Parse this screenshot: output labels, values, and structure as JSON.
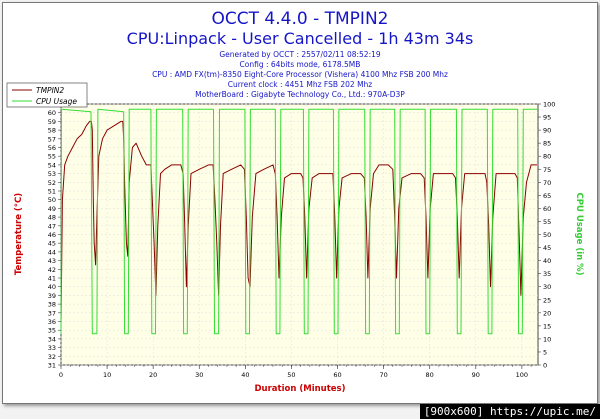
{
  "watermark": "[900x600] https://upic.me/",
  "chart_data": {
    "type": "line",
    "title": "OCCT 4.4.0 - TMPIN2",
    "subtitle": "CPU:Linpack - User Cancelled - 1h 43m 34s",
    "info": [
      "Generated by OCCT : 2557/02/11 08:52:19",
      "Config : 64bits mode, 6178.5MB",
      "CPU : AMD FX(tm)-8350 Eight-Core Processor (Vishera) 4100 Mhz FSB 200 Mhz",
      "Current clock : 4451 Mhz FSB 202 Mhz",
      "MotherBoard : Gigabyte Technology Co., Ltd.: 970A-D3P"
    ],
    "xlabel": "Duration (Minutes)",
    "ylabel": "Temperature (°C)",
    "y2label": "CPU Usage (in %)",
    "xlim": [
      0,
      103.5
    ],
    "ylim": [
      31,
      61
    ],
    "y2lim": [
      0,
      100
    ],
    "xticks": [
      0,
      10,
      20,
      30,
      40,
      50,
      60,
      70,
      80,
      90,
      100
    ],
    "colors": {
      "temp": "#8b0000",
      "cpu": "#33dd33",
      "title": "#1515c8",
      "info": "#1515c8",
      "axis_label": "#cc0000",
      "plot_bg": "#ffffe8"
    },
    "legend": {
      "position": "top-left"
    },
    "series": [
      {
        "name": "TMPIN2",
        "axis": "left",
        "points": [
          [
            0,
            35.5
          ],
          [
            0.3,
            50
          ],
          [
            0.8,
            54
          ],
          [
            1.5,
            55
          ],
          [
            2.5,
            56
          ],
          [
            3.5,
            57
          ],
          [
            4.5,
            57.5
          ],
          [
            5.5,
            58.5
          ],
          [
            6.2,
            59
          ],
          [
            6.6,
            59
          ],
          [
            6.8,
            58
          ],
          [
            7,
            50
          ],
          [
            7.2,
            45
          ],
          [
            7.5,
            42.5
          ],
          [
            7.8,
            48
          ],
          [
            8.2,
            55
          ],
          [
            9,
            57
          ],
          [
            10,
            58
          ],
          [
            11.5,
            58.5
          ],
          [
            13,
            59
          ],
          [
            13.4,
            59
          ],
          [
            13.6,
            57
          ],
          [
            13.8,
            52
          ],
          [
            14.2,
            45
          ],
          [
            14.5,
            43.5
          ],
          [
            14.8,
            52
          ],
          [
            15.5,
            56
          ],
          [
            16.3,
            56.5
          ],
          [
            17.5,
            55
          ],
          [
            18.5,
            54
          ],
          [
            19.5,
            54
          ],
          [
            19.8,
            50
          ],
          [
            20.2,
            45
          ],
          [
            20.6,
            39
          ],
          [
            21,
            47
          ],
          [
            21.6,
            53
          ],
          [
            22.5,
            53.5
          ],
          [
            24,
            54
          ],
          [
            26,
            54
          ],
          [
            26.5,
            53
          ],
          [
            26.8,
            48
          ],
          [
            27.2,
            40
          ],
          [
            27.6,
            47
          ],
          [
            28.2,
            53
          ],
          [
            30,
            53.5
          ],
          [
            32,
            54
          ],
          [
            33,
            54
          ],
          [
            33.4,
            50
          ],
          [
            33.8,
            45
          ],
          [
            34.2,
            39
          ],
          [
            34.6,
            47
          ],
          [
            35.2,
            53
          ],
          [
            37,
            53.5
          ],
          [
            39,
            54
          ],
          [
            39.8,
            53.5
          ],
          [
            40.2,
            48
          ],
          [
            40.6,
            41
          ],
          [
            41,
            40
          ],
          [
            41.5,
            48
          ],
          [
            42.3,
            53
          ],
          [
            44,
            53.5
          ],
          [
            46,
            54
          ],
          [
            46.5,
            53
          ],
          [
            46.9,
            48
          ],
          [
            47.3,
            41
          ],
          [
            47.8,
            48
          ],
          [
            48.5,
            52.5
          ],
          [
            50,
            53
          ],
          [
            52,
            53
          ],
          [
            52.5,
            52.5
          ],
          [
            52.9,
            48
          ],
          [
            53.3,
            41
          ],
          [
            53.8,
            49
          ],
          [
            54.5,
            52.5
          ],
          [
            56,
            53
          ],
          [
            58,
            53
          ],
          [
            59,
            53
          ],
          [
            59.4,
            48
          ],
          [
            59.8,
            41
          ],
          [
            60.3,
            49
          ],
          [
            61,
            52.5
          ],
          [
            63,
            53
          ],
          [
            65,
            53
          ],
          [
            65.8,
            52.5
          ],
          [
            66.2,
            48
          ],
          [
            66.6,
            41
          ],
          [
            67.1,
            49
          ],
          [
            67.8,
            53
          ],
          [
            69,
            54
          ],
          [
            71,
            54
          ],
          [
            72,
            53.5
          ],
          [
            72.4,
            48
          ],
          [
            72.8,
            41
          ],
          [
            73.3,
            49
          ],
          [
            74,
            52.5
          ],
          [
            76,
            53
          ],
          [
            78,
            53
          ],
          [
            78.8,
            52.5
          ],
          [
            79.2,
            48
          ],
          [
            79.6,
            41
          ],
          [
            80.1,
            49
          ],
          [
            80.8,
            53
          ],
          [
            82.5,
            53
          ],
          [
            85,
            53
          ],
          [
            85.6,
            52.5
          ],
          [
            86,
            48
          ],
          [
            86.4,
            41
          ],
          [
            86.9,
            49
          ],
          [
            87.6,
            53
          ],
          [
            89.5,
            53
          ],
          [
            92,
            53
          ],
          [
            92.4,
            52
          ],
          [
            92.8,
            47
          ],
          [
            93.2,
            40
          ],
          [
            93.7,
            48
          ],
          [
            94.4,
            53
          ],
          [
            96.5,
            53
          ],
          [
            98.5,
            53
          ],
          [
            99,
            52.5
          ],
          [
            99.4,
            46
          ],
          [
            99.8,
            39
          ],
          [
            100.3,
            48
          ],
          [
            101,
            52
          ],
          [
            102,
            54
          ],
          [
            103.3,
            54
          ]
        ]
      },
      {
        "name": "CPU Usage",
        "axis": "right",
        "points": [
          [
            0,
            12
          ],
          [
            0.1,
            98
          ],
          [
            6.5,
            97
          ],
          [
            6.8,
            12
          ],
          [
            7.8,
            12
          ],
          [
            8,
            98
          ],
          [
            13.6,
            97
          ],
          [
            13.8,
            12
          ],
          [
            14.6,
            12
          ],
          [
            14.8,
            98
          ],
          [
            19.5,
            98
          ],
          [
            19.7,
            12
          ],
          [
            20.5,
            12
          ],
          [
            20.7,
            98
          ],
          [
            26.4,
            98
          ],
          [
            26.6,
            12
          ],
          [
            27.4,
            12
          ],
          [
            27.6,
            98
          ],
          [
            33.1,
            98
          ],
          [
            33.3,
            12
          ],
          [
            34.2,
            12
          ],
          [
            34.4,
            98
          ],
          [
            39.9,
            98
          ],
          [
            40.1,
            12
          ],
          [
            40.9,
            12
          ],
          [
            41.1,
            98
          ],
          [
            46.5,
            98
          ],
          [
            46.7,
            12
          ],
          [
            47.5,
            12
          ],
          [
            47.7,
            98
          ],
          [
            52.6,
            98
          ],
          [
            52.8,
            12
          ],
          [
            53.6,
            12
          ],
          [
            53.8,
            98
          ],
          [
            59.1,
            98
          ],
          [
            59.3,
            12
          ],
          [
            60.1,
            12
          ],
          [
            60.3,
            98
          ],
          [
            65.9,
            98
          ],
          [
            66.1,
            12
          ],
          [
            66.9,
            12
          ],
          [
            67.1,
            98
          ],
          [
            72.4,
            98
          ],
          [
            72.6,
            12
          ],
          [
            73.4,
            12
          ],
          [
            73.6,
            98
          ],
          [
            79,
            98
          ],
          [
            79.2,
            12
          ],
          [
            80,
            12
          ],
          [
            80.2,
            98
          ],
          [
            85.8,
            98
          ],
          [
            86,
            12
          ],
          [
            86.8,
            12
          ],
          [
            87,
            98
          ],
          [
            92.5,
            98
          ],
          [
            92.7,
            12
          ],
          [
            93.5,
            12
          ],
          [
            93.7,
            98
          ],
          [
            99.1,
            98
          ],
          [
            99.3,
            12
          ],
          [
            100.1,
            12
          ],
          [
            100.3,
            98
          ],
          [
            103.3,
            98
          ]
        ]
      }
    ]
  }
}
